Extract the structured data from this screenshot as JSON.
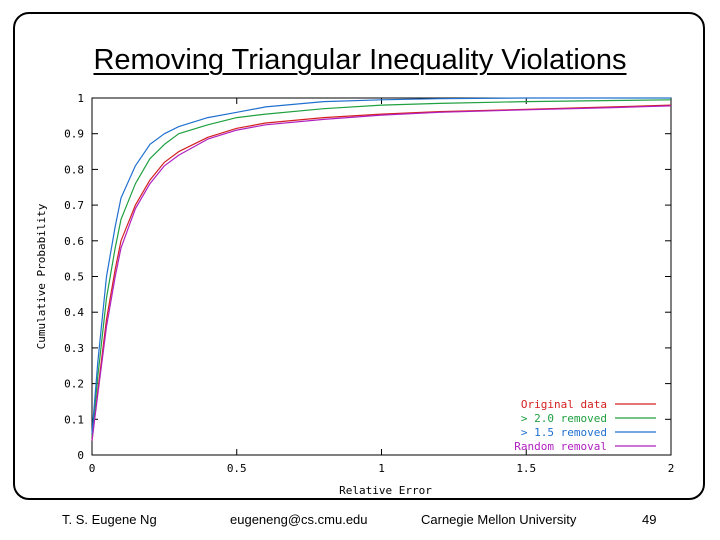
{
  "slide": {
    "title": "Removing Triangular Inequality Violations"
  },
  "footer": {
    "author": "T. S. Eugene Ng",
    "email": "eugeneng@cs.cmu.edu",
    "affiliation": "Carnegie Mellon University",
    "page_number": "49"
  },
  "chart_data": {
    "type": "line",
    "title": "",
    "xlabel": "Relative Error",
    "ylabel": "Cumulative Probability",
    "xlim": [
      0,
      2
    ],
    "ylim": [
      0,
      1
    ],
    "xticks": [
      "0",
      "0.5",
      "1",
      "1.5",
      "2"
    ],
    "yticks": [
      "0",
      "0.1",
      "0.2",
      "0.3",
      "0.4",
      "0.5",
      "0.6",
      "0.7",
      "0.8",
      "0.9",
      "1"
    ],
    "grid": false,
    "legend_position": "bottom-right",
    "series": [
      {
        "name": "Original data",
        "color": "#d42020",
        "x": [
          0,
          0.02,
          0.05,
          0.08,
          0.1,
          0.15,
          0.2,
          0.25,
          0.3,
          0.4,
          0.5,
          0.6,
          0.8,
          1.0,
          1.2,
          1.5,
          1.8,
          2.0
        ],
        "y": [
          0.04,
          0.18,
          0.38,
          0.52,
          0.6,
          0.7,
          0.77,
          0.82,
          0.85,
          0.89,
          0.915,
          0.93,
          0.945,
          0.955,
          0.962,
          0.968,
          0.975,
          0.98
        ]
      },
      {
        "name": "> 2.0 removed",
        "color": "#20a040",
        "x": [
          0,
          0.02,
          0.05,
          0.08,
          0.1,
          0.15,
          0.2,
          0.25,
          0.3,
          0.4,
          0.5,
          0.6,
          0.8,
          1.0,
          1.2,
          1.5,
          1.8,
          2.0
        ],
        "y": [
          0.05,
          0.22,
          0.44,
          0.58,
          0.66,
          0.76,
          0.83,
          0.87,
          0.9,
          0.925,
          0.945,
          0.955,
          0.97,
          0.98,
          0.985,
          0.99,
          0.993,
          0.995
        ]
      },
      {
        "name": "> 1.5 removed",
        "color": "#2070d0",
        "x": [
          0,
          0.02,
          0.05,
          0.08,
          0.1,
          0.15,
          0.2,
          0.25,
          0.3,
          0.4,
          0.5,
          0.6,
          0.8,
          1.0,
          1.2,
          1.5,
          1.8,
          2.0
        ],
        "y": [
          0.06,
          0.26,
          0.5,
          0.64,
          0.72,
          0.81,
          0.87,
          0.9,
          0.92,
          0.945,
          0.96,
          0.975,
          0.99,
          0.995,
          0.998,
          1.0,
          1.0,
          1.0
        ]
      },
      {
        "name": "Random removal",
        "color": "#b020c0",
        "x": [
          0,
          0.02,
          0.05,
          0.08,
          0.1,
          0.15,
          0.2,
          0.25,
          0.3,
          0.4,
          0.5,
          0.6,
          0.8,
          1.0,
          1.2,
          1.5,
          1.8,
          2.0
        ],
        "y": [
          0.04,
          0.17,
          0.36,
          0.5,
          0.58,
          0.69,
          0.76,
          0.81,
          0.84,
          0.885,
          0.91,
          0.925,
          0.94,
          0.952,
          0.96,
          0.967,
          0.973,
          0.978
        ]
      }
    ]
  }
}
